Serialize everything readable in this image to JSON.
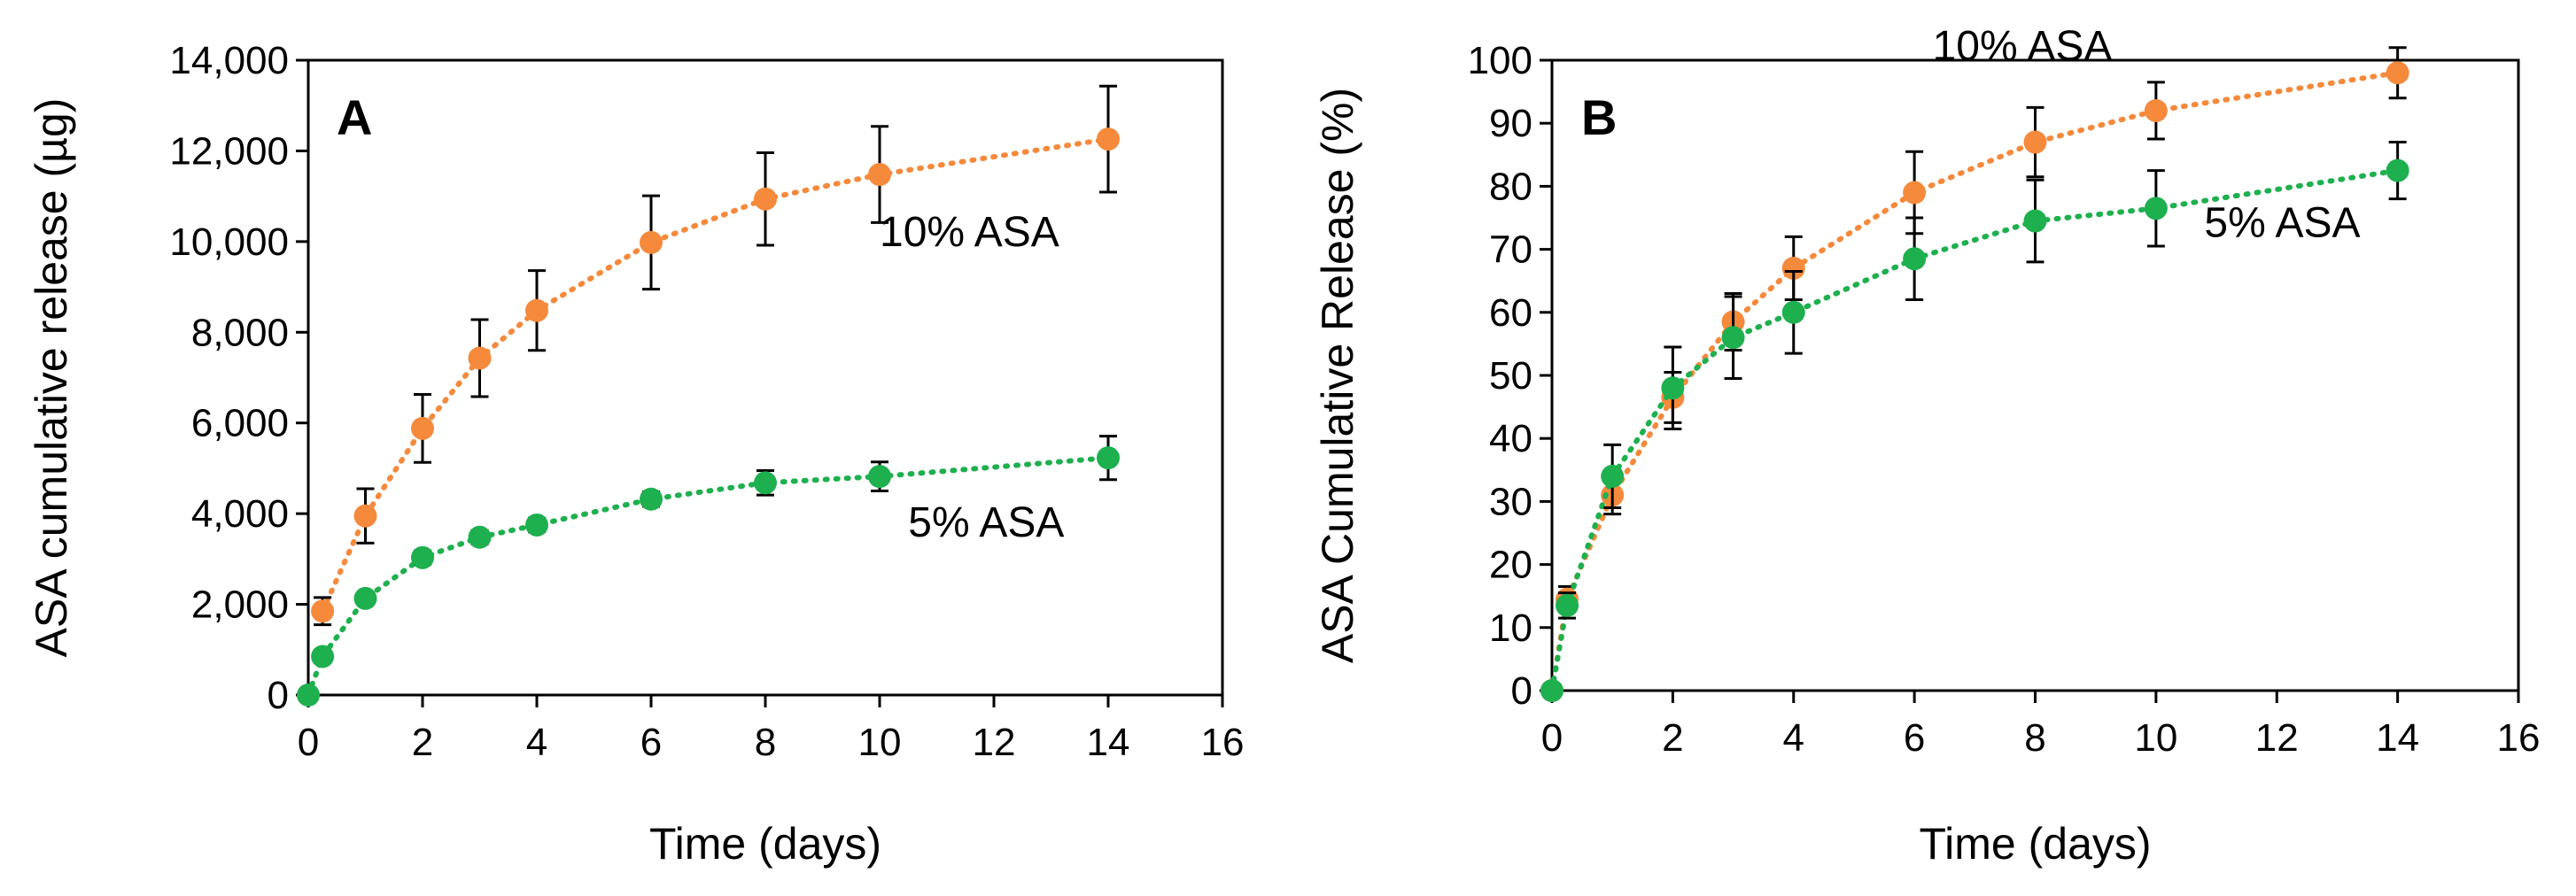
{
  "chart_data": [
    {
      "panel": "A",
      "type": "line",
      "xlabel": "Time (days)",
      "ylabel": "ASA cumulative release (µg)",
      "xlim": [
        0,
        16
      ],
      "ylim": [
        0,
        14000
      ],
      "x_ticks": [
        0,
        2,
        4,
        6,
        8,
        10,
        12,
        14,
        16
      ],
      "y_ticks": [
        0,
        2000,
        4000,
        6000,
        8000,
        10000,
        12000,
        14000
      ],
      "x_tick_labels": [
        "0",
        "2",
        "4",
        "6",
        "8",
        "10",
        "12",
        "14",
        "16"
      ],
      "y_tick_labels": [
        "0",
        "2,000",
        "4,000",
        "6,000",
        "8,000",
        "10,000",
        "12,000",
        "14,000"
      ],
      "grid": false,
      "series": [
        {
          "name": "10% ASA",
          "color": "#f58a3c",
          "x": [
            0.25,
            1,
            2,
            3,
            4,
            6,
            8,
            10,
            14
          ],
          "y": [
            1850,
            3950,
            5880,
            7430,
            8480,
            9980,
            10940,
            11480,
            12260
          ],
          "error": [
            300,
            600,
            750,
            850,
            880,
            1030,
            1020,
            1060,
            1170
          ],
          "label_anchor": [
            10,
            9900
          ]
        },
        {
          "name": "5% ASA",
          "color": "#1eb04e",
          "x": [
            0,
            0.25,
            1,
            2,
            3,
            4,
            6,
            8,
            10,
            14
          ],
          "y": [
            0,
            850,
            2130,
            3030,
            3480,
            3750,
            4320,
            4680,
            4820,
            5230
          ],
          "error": [
            0,
            80,
            120,
            150,
            150,
            150,
            160,
            270,
            320,
            480
          ],
          "label_anchor": [
            10.5,
            3500
          ]
        }
      ]
    },
    {
      "panel": "B",
      "type": "line",
      "xlabel": "Time (days)",
      "ylabel": "ASA Cumulative Release (%)",
      "xlim": [
        0,
        16
      ],
      "ylim": [
        0,
        100
      ],
      "x_ticks": [
        0,
        2,
        4,
        6,
        8,
        10,
        12,
        14,
        16
      ],
      "y_ticks": [
        0,
        10,
        20,
        30,
        40,
        50,
        60,
        70,
        80,
        90,
        100
      ],
      "x_tick_labels": [
        "0",
        "2",
        "4",
        "6",
        "8",
        "10",
        "12",
        "14",
        "16"
      ],
      "y_tick_labels": [
        "0",
        "10",
        "20",
        "30",
        "40",
        "50",
        "60",
        "70",
        "80",
        "90",
        "100"
      ],
      "grid": false,
      "series": [
        {
          "name": "10% ASA",
          "color": "#f58a3c",
          "x": [
            0,
            0.25,
            1,
            2,
            3,
            4,
            6,
            8,
            10,
            14
          ],
          "y": [
            0,
            14.5,
            31,
            46.5,
            58.5,
            67,
            79,
            87,
            92,
            98
          ],
          "error": [
            0,
            2,
            3,
            4,
            4.5,
            5,
            6.5,
            5.5,
            4.5,
            4
          ],
          "label_anchor": [
            6.3,
            100
          ]
        },
        {
          "name": "5% ASA",
          "color": "#1eb04e",
          "x": [
            0,
            0.25,
            1,
            2,
            3,
            4,
            6,
            8,
            10,
            14
          ],
          "y": [
            0,
            13.5,
            34,
            48,
            56,
            60,
            68.5,
            74.5,
            76.5,
            82.5
          ],
          "error": [
            0,
            2,
            5,
            6.5,
            6.5,
            6.5,
            6.5,
            6.5,
            6,
            4.5
          ],
          "label_anchor": [
            10.8,
            72
          ]
        }
      ]
    }
  ]
}
